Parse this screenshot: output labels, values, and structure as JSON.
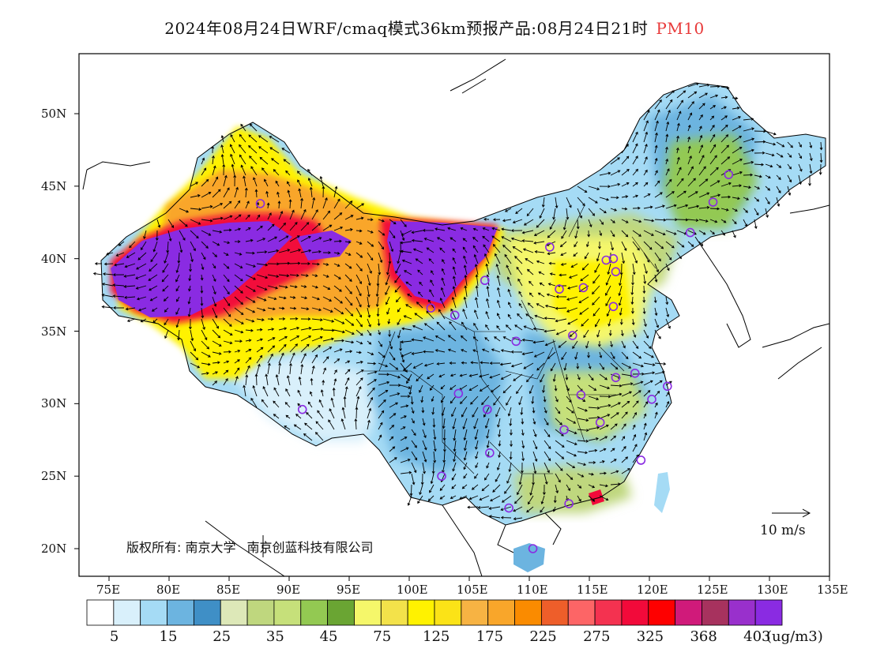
{
  "title": {
    "main": "2024年08月24日WRF/cmaq模式36km预报产品:08月24日21时",
    "species": "PM10",
    "species_color": "#e83a3a"
  },
  "axes": {
    "lat_labels": [
      "50N",
      "45N",
      "40N",
      "35N",
      "30N",
      "25N",
      "20N"
    ],
    "lon_labels": [
      "75E",
      "80E",
      "85E",
      "90E",
      "95E",
      "100E",
      "105E",
      "110E",
      "115E",
      "120E",
      "125E",
      "130E",
      "135E"
    ]
  },
  "copyright": {
    "left": "版权所有: 南京大学",
    "right": "南京创蓝科技有限公司"
  },
  "wind_scale": {
    "label": "10 m/s"
  },
  "legend": {
    "colors": [
      "#ffffff",
      "#d9f0fb",
      "#a5dbf5",
      "#6cb4e0",
      "#3f8fc6",
      "#dde8b8",
      "#bfd77e",
      "#c6e07a",
      "#93c952",
      "#6aa533",
      "#f5f76a",
      "#f3e24a",
      "#fff200",
      "#fbe317",
      "#f7b343",
      "#f9a62a",
      "#fa8b00",
      "#ee5e2a",
      "#fd6566",
      "#f43250",
      "#f20a3a",
      "#fe0000",
      "#d01a7a",
      "#a7325e",
      "#9930cc",
      "#8a2be2"
    ],
    "tick_labels": [
      "5",
      "15",
      "25",
      "35",
      "45",
      "75",
      "125",
      "175",
      "225",
      "275",
      "325",
      "368",
      "403"
    ],
    "unit": "(ug/m3)"
  },
  "map_colors": {
    "purple": "#8a2be2",
    "red": "#f20a3a",
    "orange": "#f9a62a",
    "yellow": "#fff200",
    "lightyellow": "#f5f76a",
    "green": "#bfd77e",
    "darkgreen": "#93c952",
    "blue": "#6cb4e0",
    "darkblue": "#3f8fc6",
    "lightblue": "#a5dbf5",
    "paleblue": "#d9f0fb",
    "station": "#8a2be2",
    "boundary": "#000000"
  }
}
